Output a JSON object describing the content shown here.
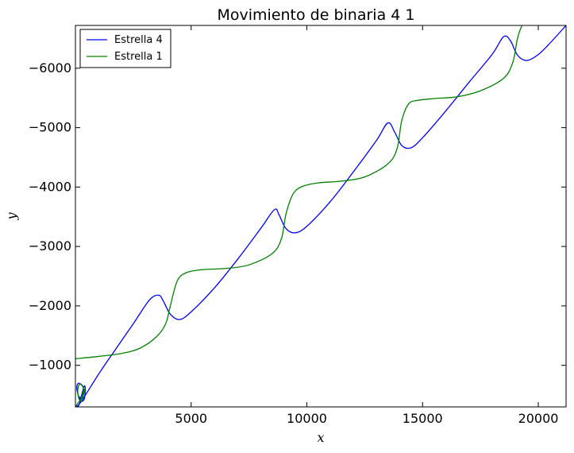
{
  "chart_data": {
    "type": "line",
    "title": "Movimiento de binaria 4 1",
    "xlabel": "x",
    "ylabel": "y",
    "xlim": [
      0,
      21200
    ],
    "ylim": [
      -300,
      -6720
    ],
    "xticks": [
      5000,
      10000,
      15000,
      20000
    ],
    "xtick_labels": [
      "5000",
      "10000",
      "15000",
      "20000"
    ],
    "yticks": [
      -1000,
      -2000,
      -3000,
      -4000,
      -5000,
      -6000
    ],
    "ytick_labels": [
      "−1000",
      "−2000",
      "−3000",
      "−4000",
      "−5000",
      "−6000"
    ],
    "grid": false,
    "legend_position": "top-left",
    "series": [
      {
        "name": "Estrella 4",
        "color": "#0000ff",
        "x": [
          0,
          250,
          1000,
          1700,
          2500,
          3200,
          3600,
          3800,
          4100,
          4500,
          5000,
          6000,
          7000,
          8000,
          8600,
          8800,
          9100,
          9500,
          10000,
          11000,
          12000,
          13000,
          13500,
          13800,
          14100,
          14500,
          15000,
          16000,
          17000,
          18000,
          18500,
          18800,
          19100,
          19500,
          20000,
          20500,
          21200
        ],
        "y": [
          -290,
          -390,
          -850,
          -1250,
          -1700,
          -2100,
          -2180,
          -2080,
          -1860,
          -1770,
          -1900,
          -2300,
          -2780,
          -3300,
          -3620,
          -3530,
          -3300,
          -3230,
          -3340,
          -3750,
          -4250,
          -4780,
          -5080,
          -4920,
          -4700,
          -4660,
          -4830,
          -5280,
          -5760,
          -6230,
          -6530,
          -6460,
          -6220,
          -6130,
          -6230,
          -6420,
          -6720
        ],
        "inset_x": [
          0,
          150,
          250,
          380,
          430,
          380,
          250,
          120,
          60,
          150,
          320,
          350,
          250,
          160
        ],
        "inset_y": [
          -290,
          -330,
          -470,
          -650,
          -590,
          -430,
          -400,
          -500,
          -640,
          -700,
          -640,
          -540,
          -450,
          -470
        ]
      },
      {
        "name": "Estrella 1",
        "color": "#008000",
        "x": [
          0,
          1000,
          2000,
          2800,
          3500,
          3900,
          4100,
          4400,
          4800,
          5500,
          6500,
          7500,
          8500,
          8900,
          9100,
          9400,
          9800,
          10500,
          11500,
          12500,
          13500,
          13900,
          14100,
          14400,
          14800,
          15500,
          16500,
          17500,
          18500,
          18900,
          19100,
          19300,
          19500
        ],
        "y": [
          -1110,
          -1150,
          -1200,
          -1290,
          -1480,
          -1700,
          -2000,
          -2420,
          -2560,
          -2610,
          -2630,
          -2690,
          -2880,
          -3130,
          -3550,
          -3880,
          -4010,
          -4070,
          -4100,
          -4170,
          -4390,
          -4650,
          -5120,
          -5400,
          -5460,
          -5490,
          -5520,
          -5620,
          -5830,
          -6100,
          -6500,
          -6720,
          -6800
        ],
        "inset_x": [
          0,
          100,
          250,
          350,
          400,
          350,
          250,
          150,
          100,
          170,
          300,
          350,
          280,
          200
        ],
        "inset_y": [
          -300,
          -360,
          -440,
          -560,
          -600,
          -500,
          -400,
          -440,
          -580,
          -680,
          -660,
          -560,
          -470,
          -470
        ]
      }
    ]
  }
}
